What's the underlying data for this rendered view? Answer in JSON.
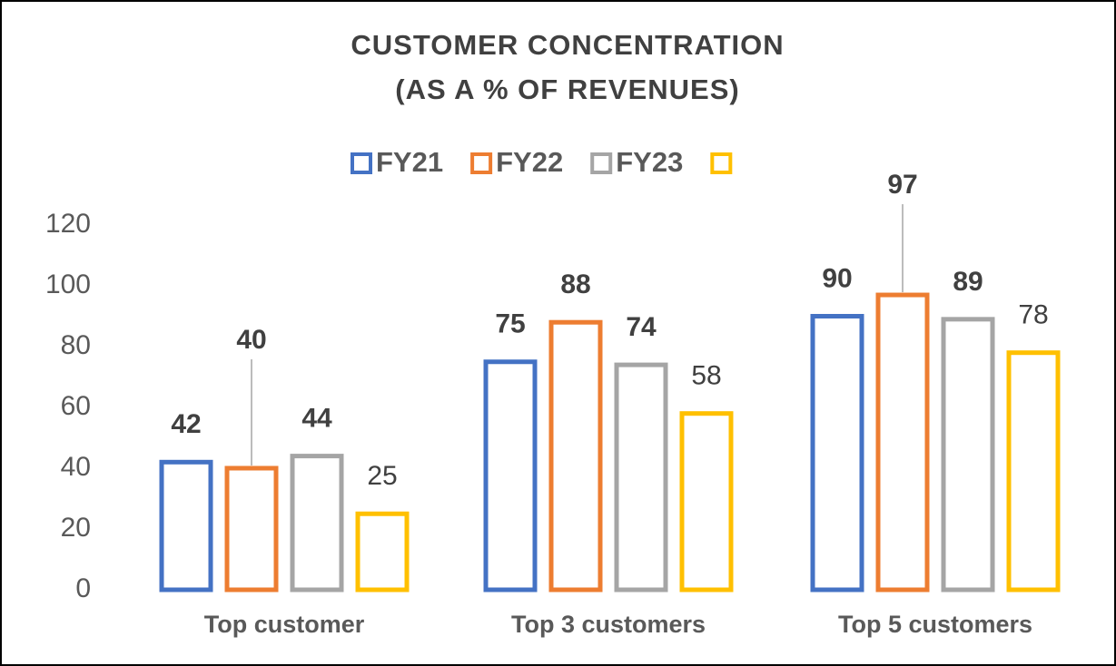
{
  "chart_data": {
    "type": "bar",
    "title": [
      "CUSTOMER CONCENTRATION",
      "(AS A % OF REVENUES)"
    ],
    "categories": [
      "Top customer",
      "Top 3 customers",
      "Top 5 customers"
    ],
    "series": [
      {
        "name": "FY21",
        "color": "#4472c4",
        "values": [
          42,
          75,
          90
        ]
      },
      {
        "name": "FY22",
        "color": "#ed7d31",
        "values": [
          40,
          88,
          97
        ]
      },
      {
        "name": "FY23",
        "color": "#a5a5a5",
        "values": [
          44,
          74,
          89
        ]
      },
      {
        "color": "#ffc000",
        "values": [
          25,
          58,
          78
        ]
      }
    ],
    "ylim": [
      0,
      120
    ],
    "yticks": [
      0,
      20,
      40,
      60,
      80,
      100,
      120
    ],
    "grid": false,
    "legend": "top"
  }
}
